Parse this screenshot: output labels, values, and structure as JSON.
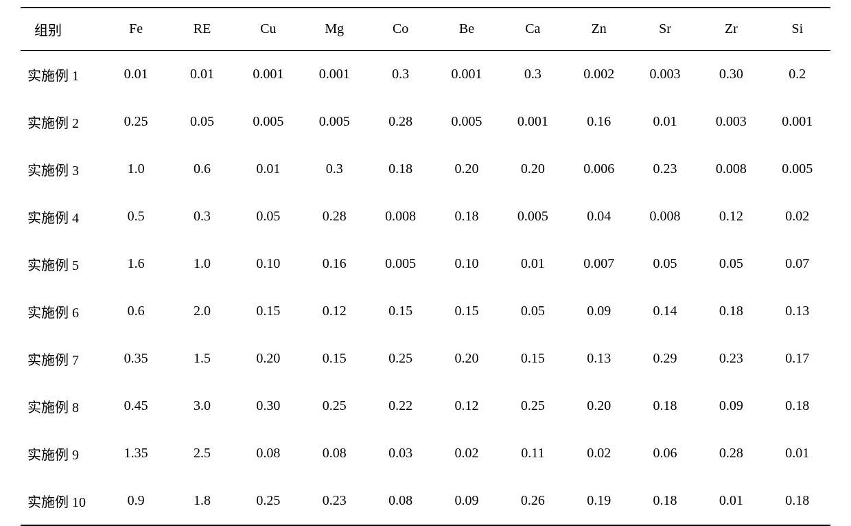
{
  "table": {
    "columns": [
      "组别",
      "Fe",
      "RE",
      "Cu",
      "Mg",
      "Co",
      "Be",
      "Ca",
      "Zn",
      "Sr",
      "Zr",
      "Si"
    ],
    "rows": [
      {
        "label": "实施例 1",
        "values": [
          "0.01",
          "0.01",
          "0.001",
          "0.001",
          "0.3",
          "0.001",
          "0.3",
          "0.002",
          "0.003",
          "0.30",
          "0.2"
        ]
      },
      {
        "label": "实施例 2",
        "values": [
          "0.25",
          "0.05",
          "0.005",
          "0.005",
          "0.28",
          "0.005",
          "0.001",
          "0.16",
          "0.01",
          "0.003",
          "0.001"
        ]
      },
      {
        "label": "实施例 3",
        "values": [
          "1.0",
          "0.6",
          "0.01",
          "0.3",
          "0.18",
          "0.20",
          "0.20",
          "0.006",
          "0.23",
          "0.008",
          "0.005"
        ]
      },
      {
        "label": "实施例 4",
        "values": [
          "0.5",
          "0.3",
          "0.05",
          "0.28",
          "0.008",
          "0.18",
          "0.005",
          "0.04",
          "0.008",
          "0.12",
          "0.02"
        ]
      },
      {
        "label": "实施例 5",
        "values": [
          "1.6",
          "1.0",
          "0.10",
          "0.16",
          "0.005",
          "0.10",
          "0.01",
          "0.007",
          "0.05",
          "0.05",
          "0.07"
        ]
      },
      {
        "label": "实施例 6",
        "values": [
          "0.6",
          "2.0",
          "0.15",
          "0.12",
          "0.15",
          "0.15",
          "0.05",
          "0.09",
          "0.14",
          "0.18",
          "0.13"
        ]
      },
      {
        "label": "实施例 7",
        "values": [
          "0.35",
          "1.5",
          "0.20",
          "0.15",
          "0.25",
          "0.20",
          "0.15",
          "0.13",
          "0.29",
          "0.23",
          "0.17"
        ]
      },
      {
        "label": "实施例 8",
        "values": [
          "0.45",
          "3.0",
          "0.30",
          "0.25",
          "0.22",
          "0.12",
          "0.25",
          "0.20",
          "0.18",
          "0.09",
          "0.18"
        ]
      },
      {
        "label": "实施例 9",
        "values": [
          "1.35",
          "2.5",
          "0.08",
          "0.08",
          "0.03",
          "0.02",
          "0.11",
          "0.02",
          "0.06",
          "0.28",
          "0.01"
        ]
      },
      {
        "label": "实施例 10",
        "values": [
          "0.9",
          "1.8",
          "0.25",
          "0.23",
          "0.08",
          "0.09",
          "0.26",
          "0.19",
          "0.18",
          "0.01",
          "0.18"
        ]
      }
    ],
    "header_fontsize": 20,
    "cell_fontsize": 20,
    "border_color": "#000000",
    "background_color": "#ffffff",
    "text_color": "#000000",
    "column_widths": [
      "120px",
      "auto",
      "auto",
      "auto",
      "auto",
      "auto",
      "auto",
      "auto",
      "auto",
      "auto",
      "auto",
      "auto"
    ],
    "first_col_align": "left",
    "other_col_align": "center"
  }
}
